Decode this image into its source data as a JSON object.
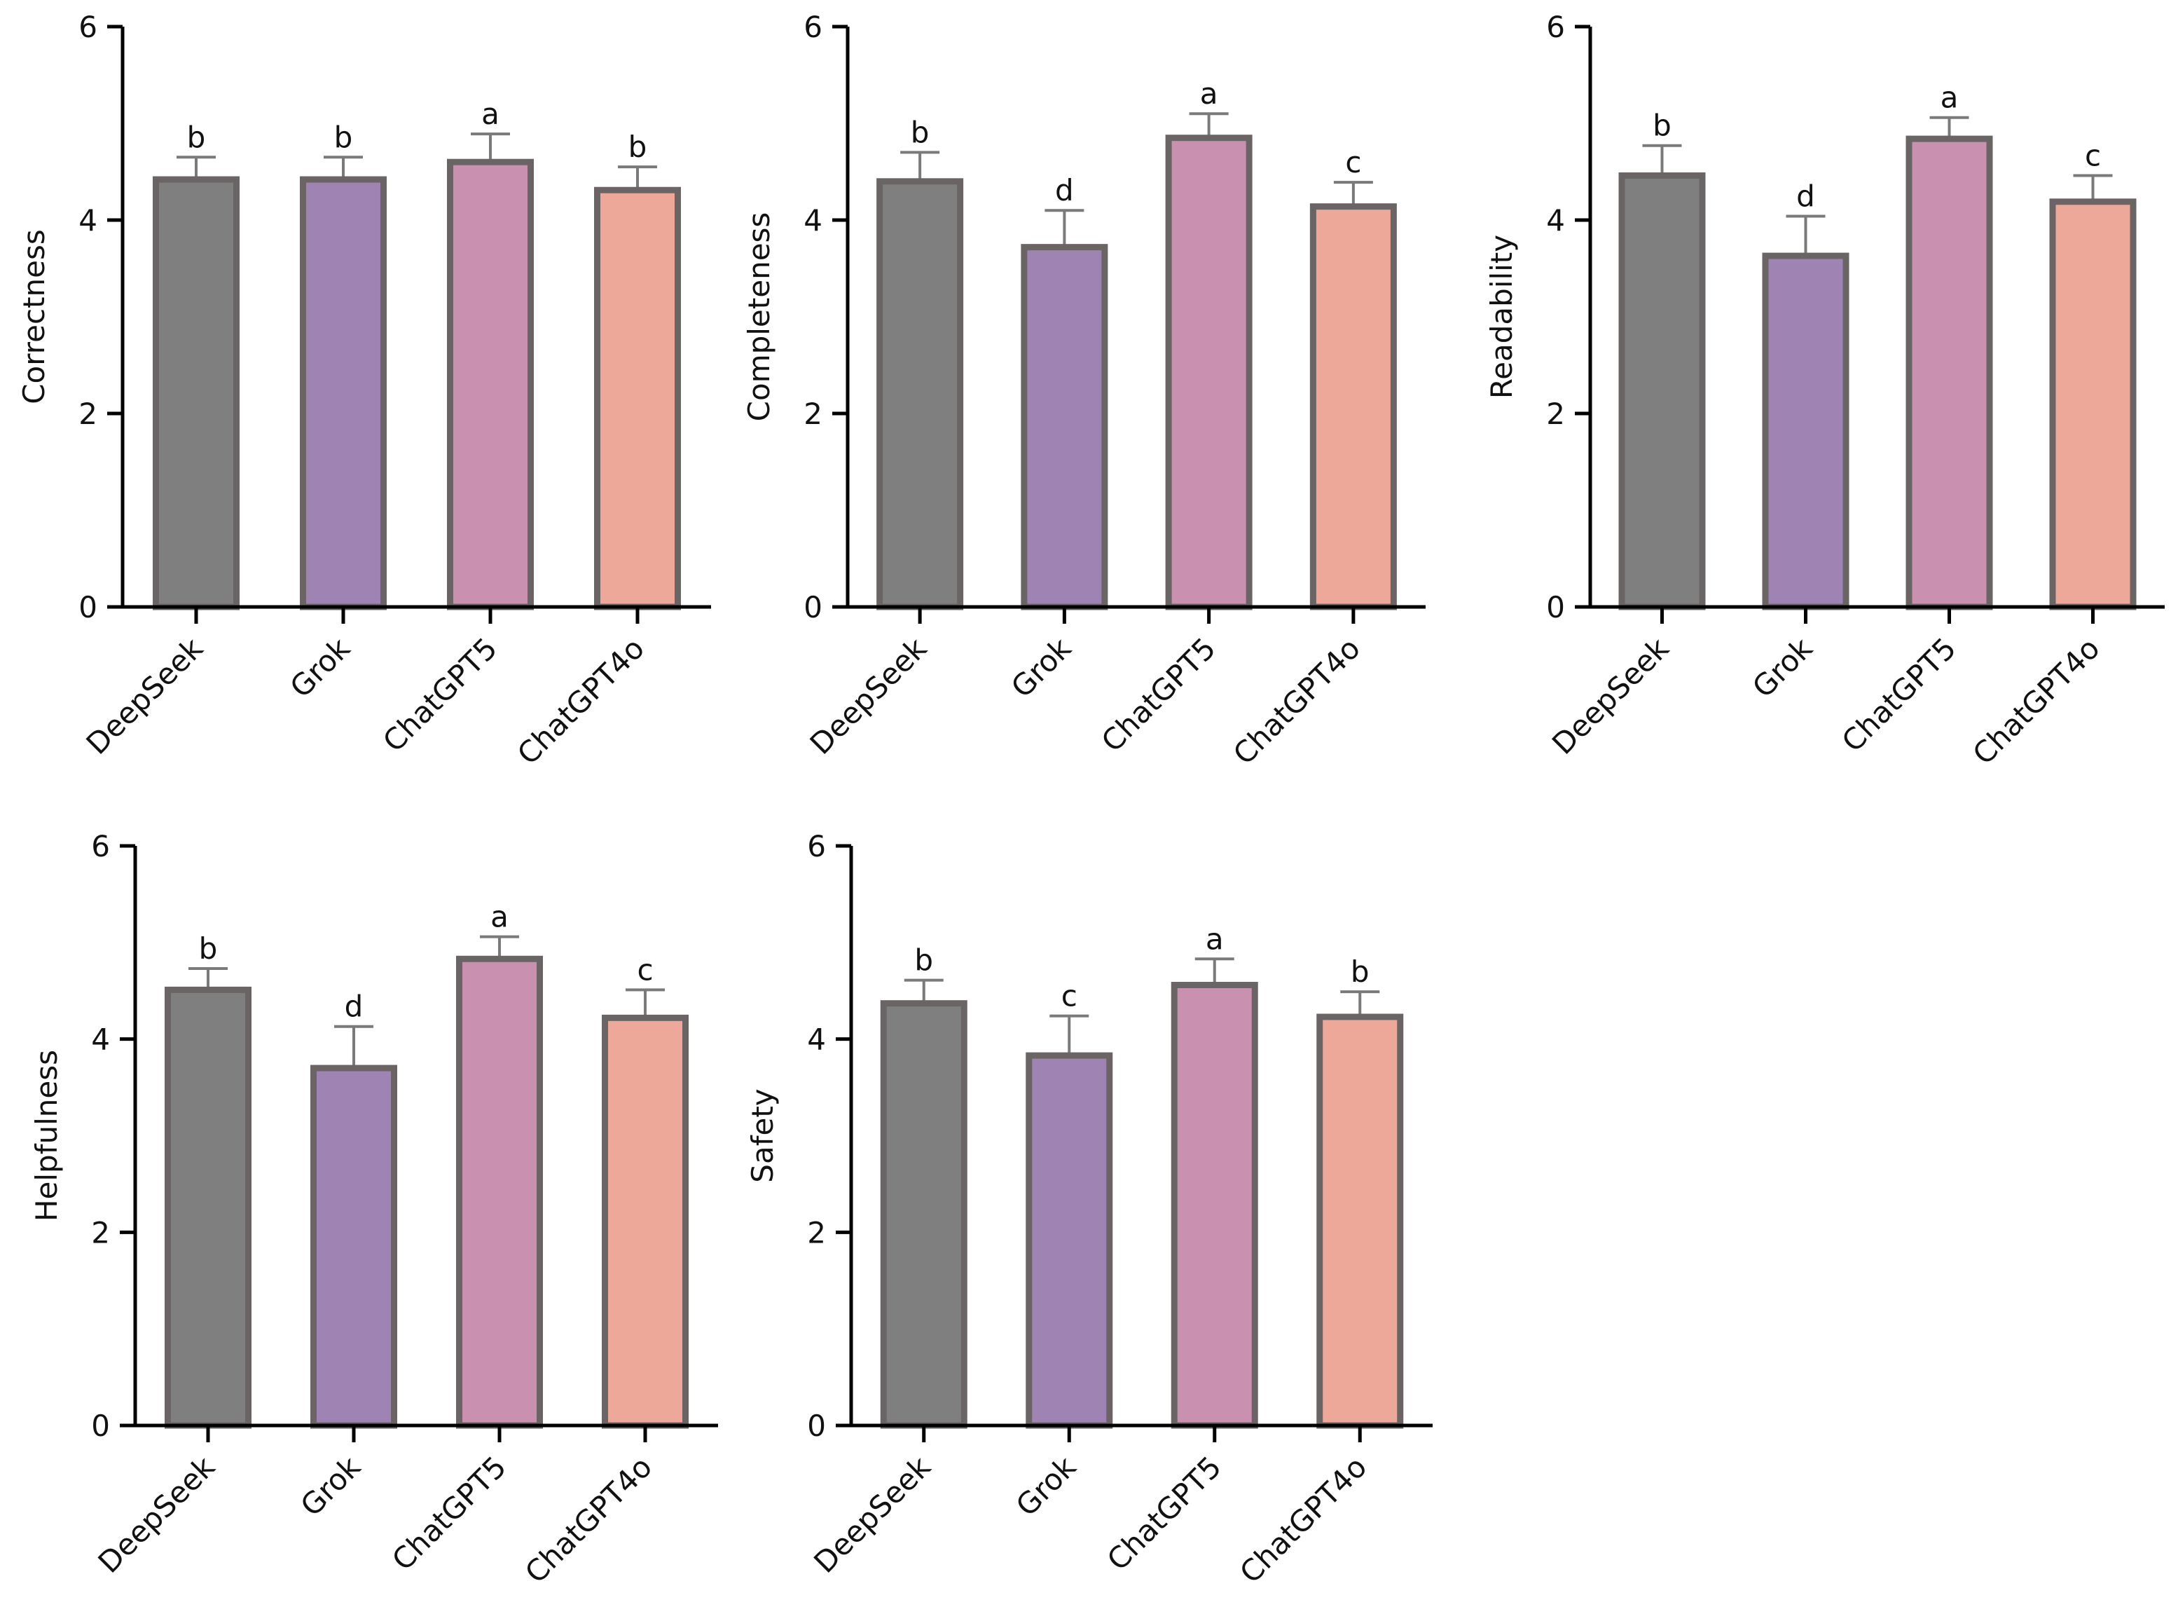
{
  "colors": {
    "axis": "#000000",
    "bar_outline": "#6b6464",
    "error_bar": "#7a7a7a",
    "series": {
      "DeepSeek": "#7f7f7f",
      "Grok": "#9e83b3",
      "ChatGPT5": "#c990b0",
      "ChatGPT4o": "#eea89a"
    }
  },
  "chart_data": [
    {
      "type": "bar",
      "ylabel": "Correctness",
      "ylim": [
        0,
        6
      ],
      "yticks": [
        "0",
        "2",
        "4",
        "6"
      ],
      "categories": [
        "DeepSeek",
        "Grok",
        "ChatGPT5",
        "ChatGPT4o"
      ],
      "values": [
        4.42,
        4.42,
        4.6,
        4.31
      ],
      "errors": [
        0.23,
        0.23,
        0.29,
        0.24
      ],
      "significance": [
        "b",
        "b",
        "a",
        "b"
      ]
    },
    {
      "type": "bar",
      "ylabel": "Completeness",
      "ylim": [
        0,
        6
      ],
      "yticks": [
        "0",
        "2",
        "4",
        "6"
      ],
      "categories": [
        "DeepSeek",
        "Grok",
        "ChatGPT5",
        "ChatGPT4o"
      ],
      "values": [
        4.4,
        3.72,
        4.85,
        4.14
      ],
      "errors": [
        0.3,
        0.38,
        0.25,
        0.25
      ],
      "significance": [
        "b",
        "d",
        "a",
        "c"
      ]
    },
    {
      "type": "bar",
      "ylabel": "Readability",
      "ylim": [
        0,
        6
      ],
      "yticks": [
        "0",
        "2",
        "4",
        "6"
      ],
      "categories": [
        "DeepSeek",
        "Grok",
        "ChatGPT5",
        "ChatGPT4o"
      ],
      "values": [
        4.46,
        3.63,
        4.84,
        4.19
      ],
      "errors": [
        0.31,
        0.41,
        0.22,
        0.27
      ],
      "significance": [
        "b",
        "d",
        "a",
        "c"
      ]
    },
    {
      "type": "bar",
      "ylabel": "Helpfulness",
      "ylim": [
        0,
        6
      ],
      "yticks": [
        "0",
        "2",
        "4",
        "6"
      ],
      "categories": [
        "DeepSeek",
        "Grok",
        "ChatGPT5",
        "ChatGPT4o"
      ],
      "values": [
        4.51,
        3.7,
        4.83,
        4.22
      ],
      "errors": [
        0.22,
        0.43,
        0.23,
        0.29
      ],
      "significance": [
        "b",
        "d",
        "a",
        "c"
      ]
    },
    {
      "type": "bar",
      "ylabel": "Safety",
      "ylim": [
        0,
        6
      ],
      "yticks": [
        "0",
        "2",
        "4",
        "6"
      ],
      "categories": [
        "DeepSeek",
        "Grok",
        "ChatGPT5",
        "ChatGPT4o"
      ],
      "values": [
        4.37,
        3.83,
        4.56,
        4.23
      ],
      "errors": [
        0.24,
        0.41,
        0.27,
        0.26
      ],
      "significance": [
        "b",
        "c",
        "a",
        "b"
      ]
    }
  ]
}
